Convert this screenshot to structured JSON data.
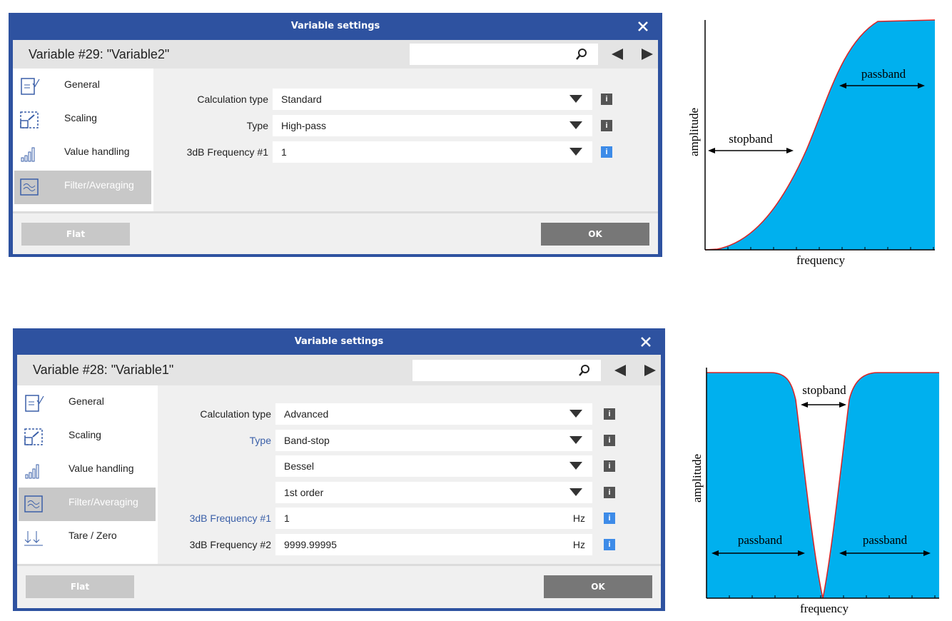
{
  "dialogs": [
    {
      "title": "Variable settings",
      "header": "Variable #29: \"Variable2\"",
      "info_label": "i",
      "sidebar": [
        "General",
        "Scaling",
        "Value handling",
        "Filter/Averaging"
      ],
      "selected": 3,
      "rows": [
        {
          "label": "Calculation type",
          "value": "Standard",
          "info_color": "#555555"
        },
        {
          "label": "Type",
          "value": "High-pass",
          "info_color": "#555555"
        },
        {
          "label": "3dB Frequency #1",
          "value": "1",
          "info_color": "#3d8be8"
        }
      ],
      "buttons": {
        "left": "Flat",
        "right": "OK"
      }
    },
    {
      "title": "Variable settings",
      "header": "Variable #28: \"Variable1\"",
      "info_label": "i",
      "sidebar": [
        "General",
        "Scaling",
        "Value handling",
        "Filter/Averaging",
        "Tare / Zero"
      ],
      "selected": 3,
      "rows": [
        {
          "label": "Calculation type",
          "value": "Advanced",
          "info_color": "#555555"
        },
        {
          "label": "Type",
          "label_color": "#3a5fa8",
          "value": "Band-stop",
          "info_color": "#555555"
        },
        {
          "value": "Bessel",
          "info_color": "#555555"
        },
        {
          "value": "1st order",
          "info_color": "#555555"
        },
        {
          "label": "3dB Frequency #1",
          "label_color": "#3a5fa8",
          "value": "1",
          "unit": "Hz",
          "info_color": "#3d8be8"
        },
        {
          "label": "3dB Frequency #2",
          "value": "9999.99995",
          "unit": "Hz",
          "info_color": "#3d8be8"
        }
      ],
      "buttons": {
        "left": "Flat",
        "right": "OK"
      }
    }
  ],
  "diagrams": [
    {
      "y_axis": "amplitude",
      "x_axis": "frequency",
      "labels": [
        "stopband",
        "passband"
      ]
    },
    {
      "y_axis": "amplitude",
      "x_axis": "frequency",
      "labels": [
        "stopband",
        "passband",
        "passband"
      ]
    }
  ]
}
